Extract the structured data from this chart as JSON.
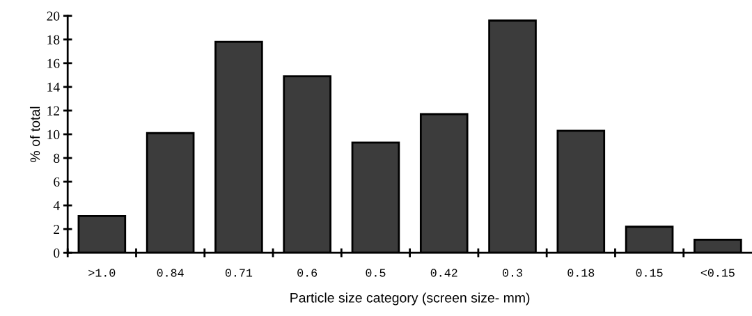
{
  "chart_data": {
    "type": "bar",
    "xlabel": "Particle size category (screen size- mm)",
    "ylabel": "% of total",
    "categories": [
      ">1.0",
      "0.84",
      "0.71",
      "0.6",
      "0.5",
      "0.42",
      "0.3",
      "0.18",
      "0.15",
      "<0.15"
    ],
    "values": [
      3.1,
      10.1,
      17.8,
      14.9,
      9.3,
      11.7,
      19.6,
      10.3,
      2.2,
      1.1
    ],
    "color": "#3c3c3c",
    "ylim": [
      0,
      20
    ],
    "yticks": [
      0,
      2,
      4,
      6,
      8,
      10,
      12,
      14,
      16,
      18,
      20
    ],
    "grid": false
  }
}
